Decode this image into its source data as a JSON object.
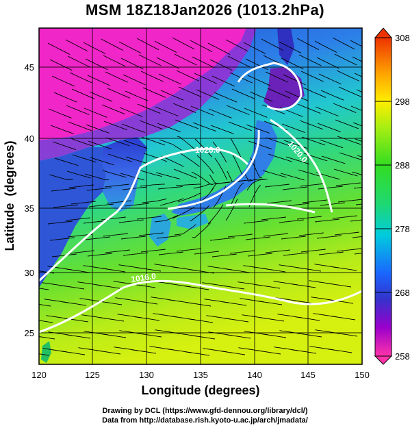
{
  "title": "MSM 18Z18Jan2026 (1013.2hPa)",
  "xlabel": "Longitude (degrees)",
  "ylabel": "Latitude  (degrees)",
  "x_ticks": [
    120,
    125,
    130,
    135,
    140,
    145,
    150
  ],
  "y_ticks": [
    25,
    30,
    35,
    40,
    45
  ],
  "colorbar_ticks": [
    258,
    268,
    278,
    288,
    298,
    308
  ],
  "colorbar_range": [
    258,
    308
  ],
  "contour_labels": [
    "1020.0",
    "1020.0",
    "1016.0"
  ],
  "credits": {
    "line1": "Drawing by DCL (https://www.gfd-dennou.org/library/dcl/)",
    "line2": "Data from http://database.rish.kyoto-u.ac.jp/arch/jmadata/"
  },
  "chart_data": {
    "type": "heatmap",
    "title": "MSM 18Z18Jan2026 (1013.2hPa)",
    "xlabel": "Longitude (degrees)",
    "ylabel": "Latitude  (degrees)",
    "xlim": [
      120,
      150
    ],
    "ylim": [
      22.4,
      47.6
    ],
    "colorbar": {
      "min": 258,
      "max": 308,
      "ticks": [
        258,
        268,
        278,
        288,
        298,
        308
      ]
    },
    "overlays": [
      "streamlines",
      "pressure contours (white)"
    ],
    "grid": true
  }
}
